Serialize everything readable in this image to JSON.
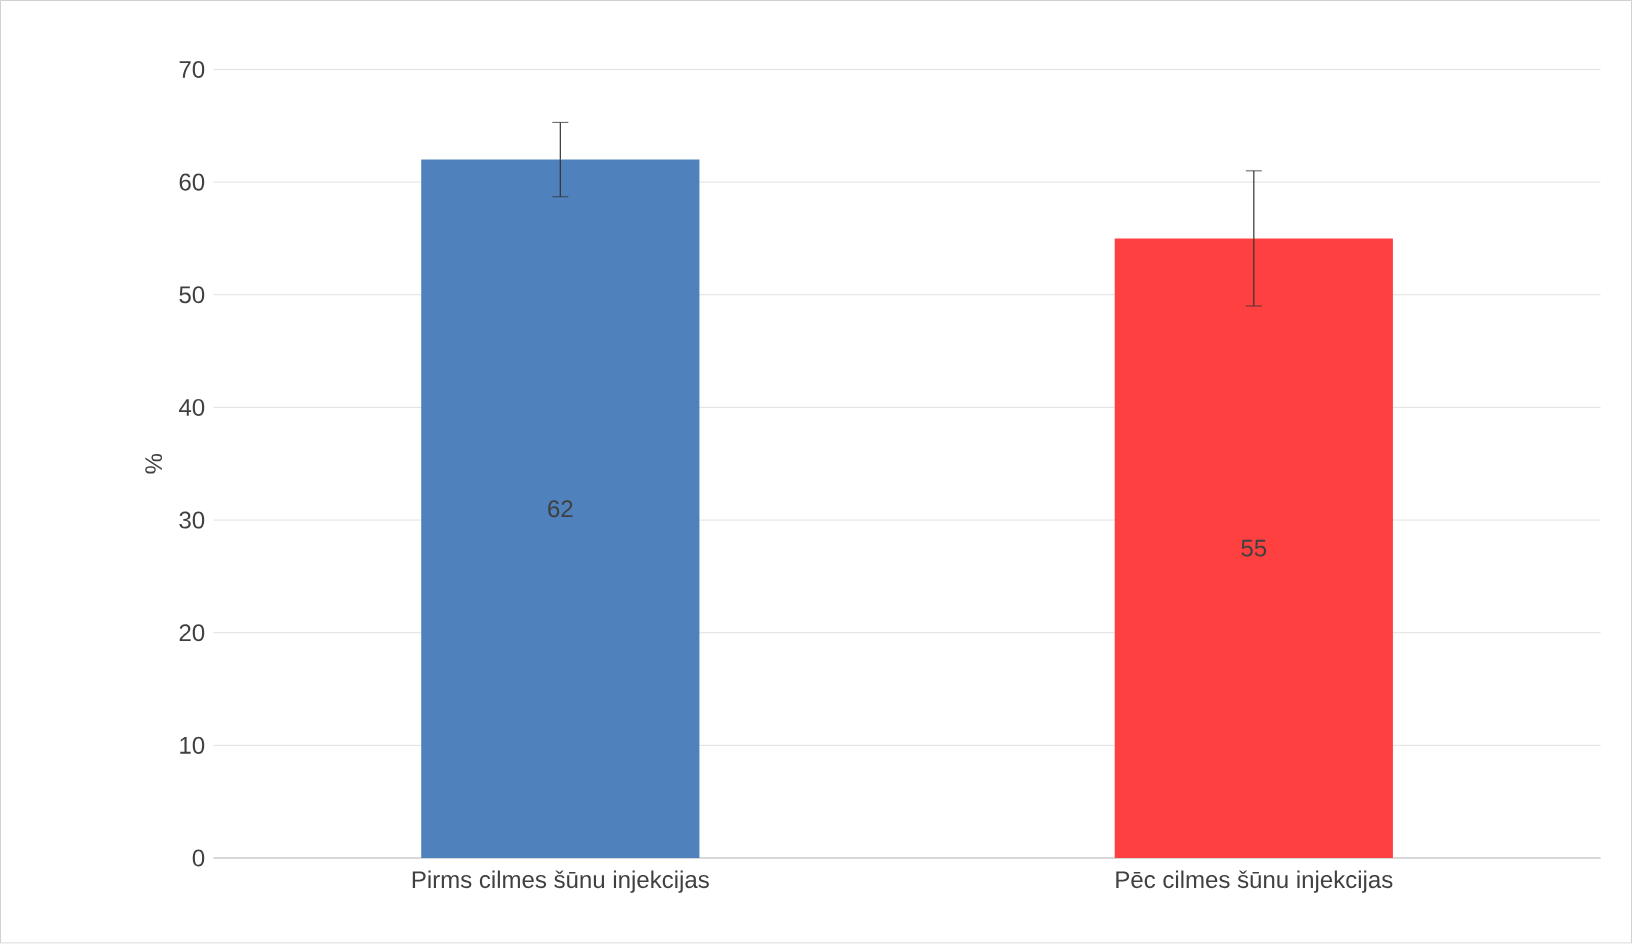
{
  "chart_data": {
    "type": "bar",
    "ylabel": "%",
    "categories": [
      "Pirms cilmes šūnu injekcijas",
      "Pēc cilmes šūnu injekcijas"
    ],
    "values": [
      62,
      55
    ],
    "colors": [
      "#4f81bd",
      "#ff4040"
    ],
    "errors": [
      3.3,
      6
    ],
    "ylim": [
      0,
      70
    ],
    "yticks": [
      0,
      10,
      20,
      30,
      40,
      50,
      60,
      70
    ],
    "grid": "y",
    "data_labels": true
  }
}
